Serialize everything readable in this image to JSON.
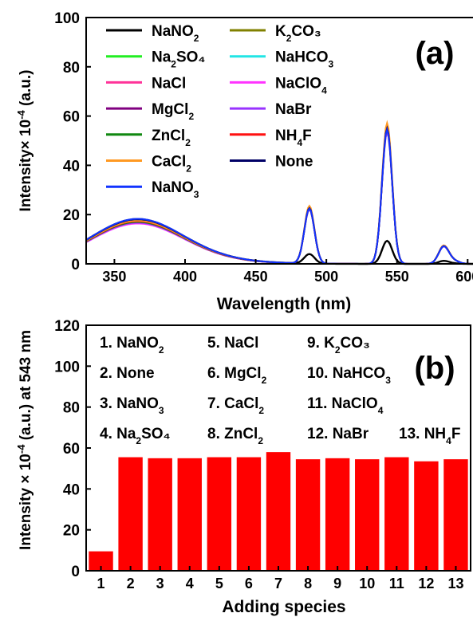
{
  "chart_data": [
    {
      "type": "line",
      "panel_label": "(a)",
      "title": "",
      "xlabel": "Wavelength (nm)",
      "ylabel": "Intensity× 10^-4 (a.u.)",
      "xlim": [
        330,
        610
      ],
      "ylim": [
        0,
        100
      ],
      "x_ticks": [
        350,
        400,
        450,
        500,
        550,
        600
      ],
      "y_ticks": [
        0,
        20,
        40,
        60,
        80,
        100
      ],
      "legend_position": "top-left",
      "legend": [
        {
          "label": "NaNO",
          "sub": "2",
          "suffix": "",
          "color": "#000000"
        },
        {
          "label": "K",
          "sub": "2",
          "suffix": "CO₃",
          "color": "#808000"
        },
        {
          "label": "Na",
          "sub": "2",
          "suffix": "SO₄",
          "color": "#22ee22"
        },
        {
          "label": "NaHCO",
          "sub": "3",
          "suffix": "",
          "color": "#22e5e5"
        },
        {
          "label": "NaCl",
          "sub": "",
          "suffix": "",
          "color": "#ff3399"
        },
        {
          "label": "NaClO",
          "sub": "4",
          "suffix": "",
          "color": "#ff33ff"
        },
        {
          "label": "MgCl",
          "sub": "2",
          "suffix": "",
          "color": "#800080"
        },
        {
          "label": "NaBr",
          "sub": "",
          "suffix": "",
          "color": "#9933ff"
        },
        {
          "label": "ZnCl",
          "sub": "2",
          "suffix": "",
          "color": "#118811"
        },
        {
          "label": "NH",
          "sub": "4",
          "suffix": "F",
          "color": "#ff1111"
        },
        {
          "label": "CaCl",
          "sub": "2",
          "suffix": "",
          "color": "#ff9922"
        },
        {
          "label": "None",
          "sub": "",
          "suffix": "",
          "color": "#000066"
        },
        {
          "label": "NaNO",
          "sub": "3",
          "suffix": "",
          "color": "#1133ff"
        }
      ],
      "series_shapes": [
        {
          "color": "#000000",
          "scale": 0.17,
          "base": 17.0
        },
        {
          "color": "#808000",
          "scale": 1.0,
          "base": 16.5
        },
        {
          "color": "#22ee22",
          "scale": 1.0,
          "base": 16.0
        },
        {
          "color": "#22e5e5",
          "scale": 0.99,
          "base": 15.8
        },
        {
          "color": "#ff3399",
          "scale": 1.0,
          "base": 15.5
        },
        {
          "color": "#ff33ff",
          "scale": 1.0,
          "base": 15.3
        },
        {
          "color": "#800080",
          "scale": 0.98,
          "base": 16.8
        },
        {
          "color": "#9933ff",
          "scale": 0.97,
          "base": 15.6
        },
        {
          "color": "#118811",
          "scale": 0.99,
          "base": 15.9
        },
        {
          "color": "#ff1111",
          "scale": 1.0,
          "base": 16.2
        },
        {
          "color": "#ff9922",
          "scale": 1.04,
          "base": 16.4
        },
        {
          "color": "#000066",
          "scale": 1.0,
          "base": 16.9
        },
        {
          "color": "#1133ff",
          "scale": 0.99,
          "base": 17.1
        }
      ],
      "peaks": [
        {
          "center": 488,
          "height": 22.5
        },
        {
          "center": 543,
          "height": 55.0
        },
        {
          "center": 583,
          "height": 7.0
        }
      ]
    },
    {
      "type": "bar",
      "panel_label": "(b)",
      "title": "",
      "xlabel": "Adding species",
      "ylabel": "Intensity × 10^-4 (a.u.) at 543 nm",
      "categories": [
        "1",
        "2",
        "3",
        "4",
        "5",
        "6",
        "7",
        "8",
        "9",
        "10",
        "11",
        "12",
        "13"
      ],
      "values": [
        9.5,
        55.5,
        55.0,
        55.0,
        55.5,
        55.5,
        58.0,
        54.5,
        55.0,
        54.5,
        55.5,
        53.5,
        54.5
      ],
      "ylim": [
        0,
        120
      ],
      "y_ticks": [
        0,
        20,
        40,
        60,
        80,
        100,
        120
      ],
      "bar_color": "#ff0000",
      "key": [
        {
          "label": "1. NaNO",
          "sub": "2",
          "suffix": ""
        },
        {
          "label": "2. None",
          "sub": "",
          "suffix": ""
        },
        {
          "label": "3. NaNO",
          "sub": "3",
          "suffix": ""
        },
        {
          "label": "4. Na",
          "sub": "2",
          "suffix": "SO₄"
        },
        {
          "label": "5. NaCl",
          "sub": "",
          "suffix": ""
        },
        {
          "label": "6. MgCl",
          "sub": "2",
          "suffix": ""
        },
        {
          "label": "7. CaCl",
          "sub": "2",
          "suffix": ""
        },
        {
          "label": "8. ZnCl",
          "sub": "2",
          "suffix": ""
        },
        {
          "label": "9. K",
          "sub": "2",
          "suffix": "CO₃"
        },
        {
          "label": "10. NaHCO",
          "sub": "3",
          "suffix": ""
        },
        {
          "label": "11. NaClO",
          "sub": "4",
          "suffix": ""
        },
        {
          "label": "12. NaBr",
          "sub": "",
          "suffix": ""
        },
        {
          "label": "13. NH",
          "sub": "4",
          "suffix": "F"
        }
      ]
    }
  ]
}
